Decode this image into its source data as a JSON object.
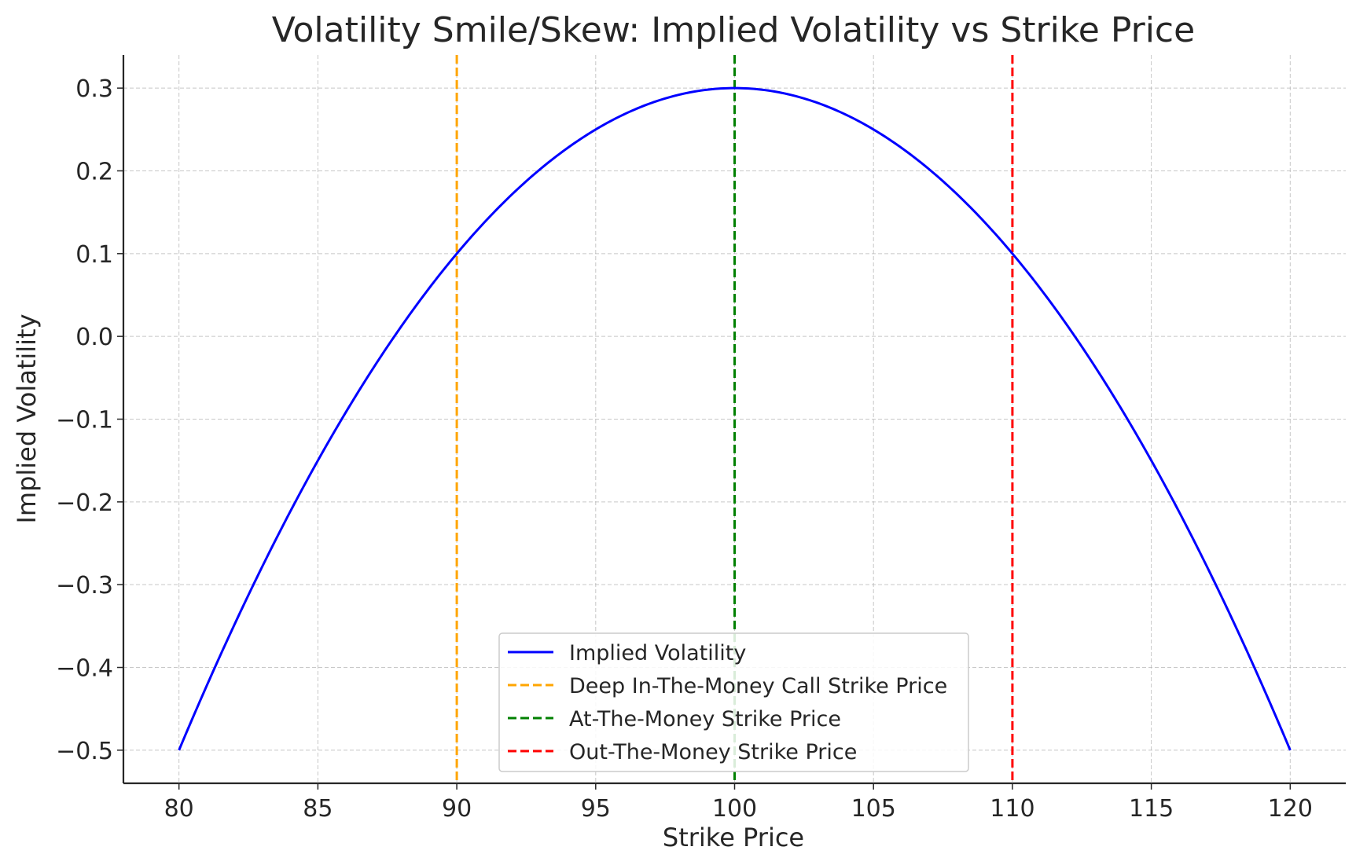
{
  "chart_data": {
    "type": "line",
    "title": "Volatility Smile/Skew: Implied Volatility vs Strike Price",
    "xlabel": "Strike Price",
    "ylabel": "Implied Volatility",
    "xlim": [
      78,
      122
    ],
    "ylim": [
      -0.54,
      0.34
    ],
    "x_ticks": [
      80,
      85,
      90,
      95,
      100,
      105,
      110,
      115,
      120
    ],
    "x_tick_labels": [
      "80",
      "85",
      "90",
      "95",
      "100",
      "105",
      "110",
      "115",
      "120"
    ],
    "y_ticks": [
      0.3,
      0.2,
      0.1,
      0.0,
      -0.1,
      -0.2,
      -0.3,
      -0.4,
      -0.5
    ],
    "y_tick_labels": [
      "0.3",
      "0.2",
      "0.1",
      "0.0",
      "−0.1",
      "−0.2",
      "−0.3",
      "−0.4",
      "−0.5"
    ],
    "grid": true,
    "legend_position": "bottom-center",
    "series": [
      {
        "name": "Implied Volatility",
        "color": "#0000ff",
        "style": "solid",
        "x": [
          80,
          82,
          84,
          86,
          88,
          90,
          92,
          94,
          96,
          98,
          100,
          102,
          104,
          106,
          108,
          110,
          112,
          114,
          116,
          118,
          120
        ],
        "y": [
          -0.5,
          -0.348,
          -0.212,
          -0.092,
          0.012,
          0.1,
          0.172,
          0.228,
          0.268,
          0.292,
          0.3,
          0.292,
          0.268,
          0.228,
          0.172,
          0.1,
          0.012,
          -0.092,
          -0.212,
          -0.348,
          -0.5
        ]
      }
    ],
    "vlines": [
      {
        "name": "Deep In-The-Money Call Strike Price",
        "x": 90,
        "color": "#ffa500",
        "style": "dashed"
      },
      {
        "name": "At-The-Money Strike Price",
        "x": 100,
        "color": "#008000",
        "style": "dashed"
      },
      {
        "name": "Out-The-Money Strike Price",
        "x": 110,
        "color": "#ff0000",
        "style": "dashed"
      }
    ]
  }
}
